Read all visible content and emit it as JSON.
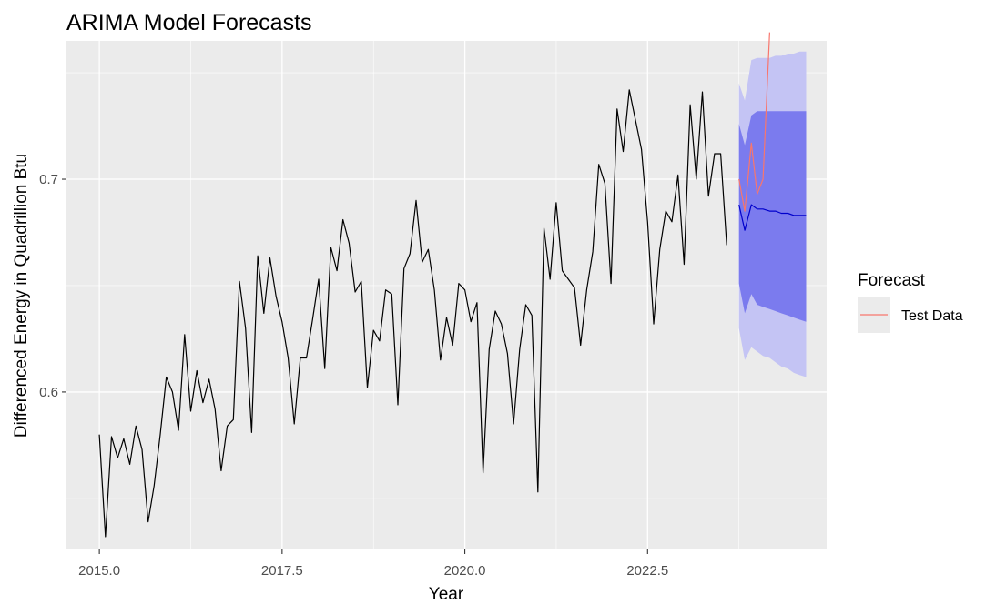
{
  "chart_data": {
    "type": "line",
    "title": "ARIMA Model Forecasts",
    "xlabel": "Year",
    "ylabel": "Differenced Energy in Quadrillion Btu",
    "xlim": [
      2014.55,
      2024.95
    ],
    "ylim": [
      0.526,
      0.765
    ],
    "x_ticks": [
      2015.0,
      2017.5,
      2020.0,
      2022.5
    ],
    "x_tick_labels": [
      "2015.0",
      "2017.5",
      "2020.0",
      "2022.5"
    ],
    "y_ticks": [
      0.6,
      0.7
    ],
    "y_tick_labels": [
      "0.6",
      "0.7"
    ],
    "y_minor_ticks": [
      0.55,
      0.65,
      0.75
    ],
    "grid": true,
    "legend": {
      "title": "Forecast",
      "position": "right",
      "entries": [
        {
          "label": "Test Data",
          "color": "#f8766d"
        }
      ]
    },
    "colors": {
      "panel": "#ebebeb",
      "grid": "#ffffff",
      "history": "#000000",
      "forecast_mean": "#0000cc",
      "band_95": "#c4c4f4",
      "band_80": "#7b7bee",
      "test_data": "#f8766d"
    },
    "history": {
      "start": 2015.0,
      "step": 0.08333,
      "values": [
        0.58,
        0.532,
        0.579,
        0.569,
        0.578,
        0.566,
        0.584,
        0.573,
        0.539,
        0.556,
        0.58,
        0.607,
        0.6,
        0.582,
        0.627,
        0.591,
        0.61,
        0.595,
        0.606,
        0.592,
        0.563,
        0.584,
        0.587,
        0.652,
        0.63,
        0.581,
        0.664,
        0.637,
        0.663,
        0.645,
        0.633,
        0.616,
        0.585,
        0.616,
        0.616,
        0.634,
        0.653,
        0.611,
        0.668,
        0.657,
        0.681,
        0.67,
        0.647,
        0.652,
        0.602,
        0.629,
        0.624,
        0.648,
        0.646,
        0.594,
        0.658,
        0.665,
        0.69,
        0.661,
        0.667,
        0.648,
        0.615,
        0.635,
        0.622,
        0.651,
        0.648,
        0.633,
        0.642,
        0.562,
        0.62,
        0.638,
        0.632,
        0.618,
        0.585,
        0.62,
        0.641,
        0.636,
        0.553,
        0.677,
        0.653,
        0.689,
        0.657,
        0.653,
        0.649,
        0.622,
        0.648,
        0.666,
        0.707,
        0.698,
        0.651,
        0.733,
        0.713,
        0.742,
        0.728,
        0.714,
        0.68,
        0.632,
        0.667,
        0.685,
        0.68,
        0.702,
        0.66,
        0.735,
        0.7,
        0.741,
        0.692,
        0.712,
        0.712,
        0.669
      ]
    },
    "forecast": {
      "x": [
        2023.75,
        2023.83,
        2023.92,
        2024.0,
        2024.08,
        2024.17,
        2024.25,
        2024.33,
        2024.42,
        2024.5,
        2024.58,
        2024.67
      ],
      "mean": [
        0.688,
        0.676,
        0.688,
        0.686,
        0.686,
        0.685,
        0.685,
        0.684,
        0.684,
        0.683,
        0.683,
        0.683
      ],
      "lo80": [
        0.651,
        0.637,
        0.646,
        0.641,
        0.64,
        0.639,
        0.638,
        0.637,
        0.636,
        0.635,
        0.634,
        0.633
      ],
      "hi80": [
        0.726,
        0.716,
        0.73,
        0.732,
        0.732,
        0.732,
        0.732,
        0.732,
        0.732,
        0.732,
        0.732,
        0.732
      ],
      "lo95": [
        0.63,
        0.615,
        0.621,
        0.619,
        0.617,
        0.616,
        0.614,
        0.612,
        0.611,
        0.609,
        0.608,
        0.607
      ],
      "hi95": [
        0.745,
        0.737,
        0.756,
        0.757,
        0.757,
        0.757,
        0.758,
        0.758,
        0.759,
        0.759,
        0.76,
        0.76
      ]
    },
    "test_data": {
      "x": [
        2023.75,
        2023.83,
        2023.92,
        2024.0,
        2024.08,
        2024.17
      ],
      "values": [
        0.7,
        0.685,
        0.717,
        0.693,
        0.7,
        0.769
      ]
    }
  }
}
